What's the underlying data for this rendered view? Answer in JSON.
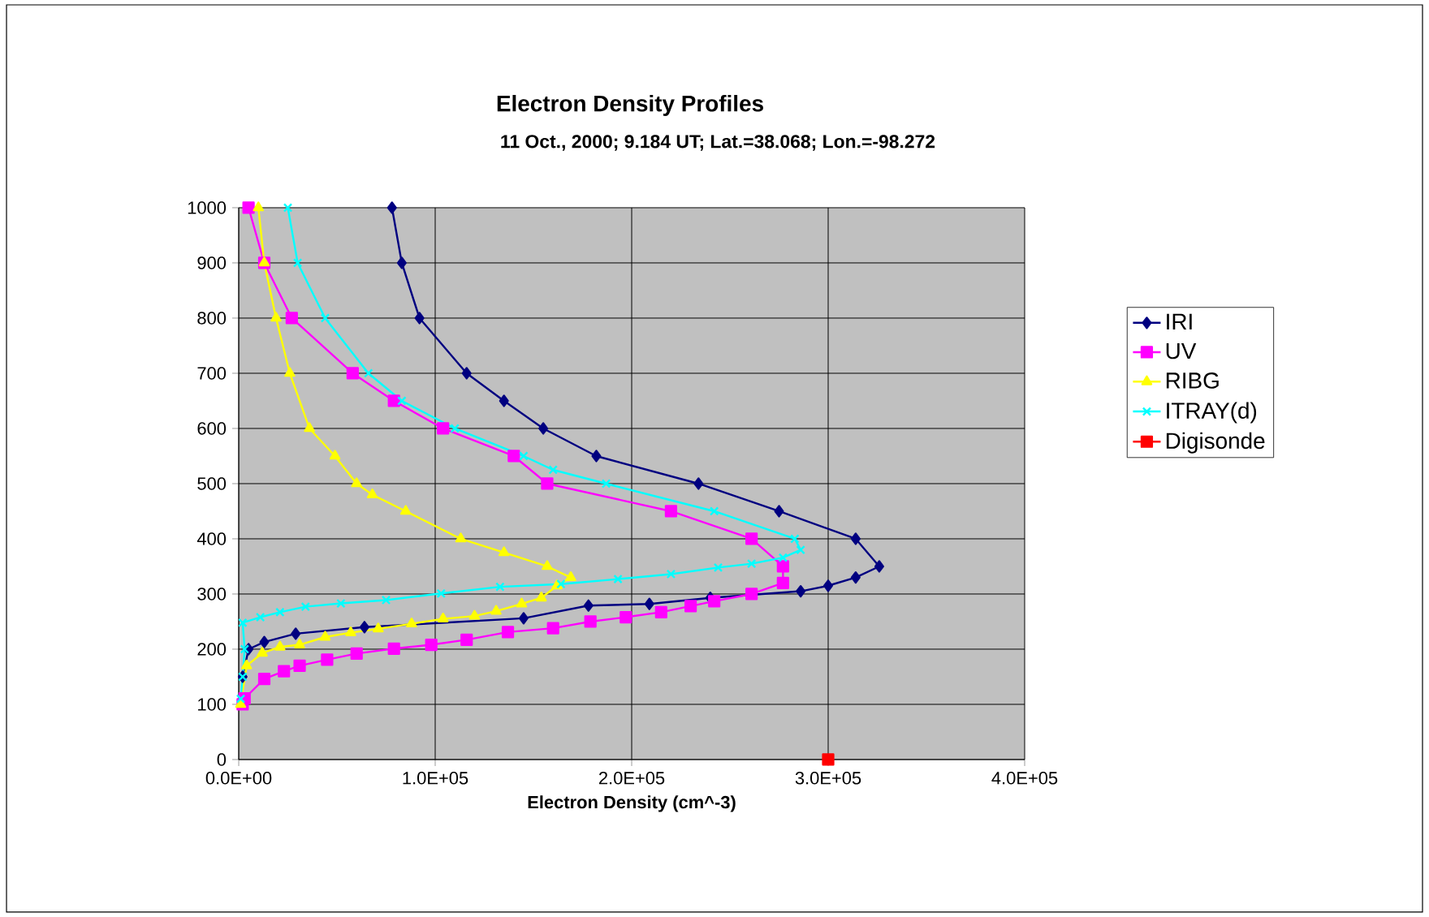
{
  "chart_data": {
    "type": "line",
    "title": "Electron Density Profiles",
    "subtitle": "11 Oct., 2000; 9.184 UT; Lat.=38.068; Lon.=-98.272",
    "xlabel": "Electron Density (cm^-3)",
    "xlim": [
      0,
      400000
    ],
    "ylim": [
      0,
      1000
    ],
    "xticks": [
      {
        "value": 0,
        "label": "0.0E+00"
      },
      {
        "value": 100000,
        "label": "1.0E+05"
      },
      {
        "value": 200000,
        "label": "2.0E+05"
      },
      {
        "value": 300000,
        "label": "3.0E+05"
      },
      {
        "value": 400000,
        "label": "4.0E+05"
      }
    ],
    "yticks": [
      0,
      100,
      200,
      300,
      400,
      500,
      600,
      700,
      800,
      900,
      1000
    ],
    "grid": true,
    "legend": "right",
    "line_style": "solid",
    "series": [
      {
        "name": "IRI",
        "color": "#000080",
        "marker": "diamond",
        "x": [
          78000,
          83000,
          92000,
          116000,
          135000,
          155000,
          182000,
          234000,
          275000,
          314000,
          326000,
          314000,
          300000,
          286000,
          240000,
          209000,
          178000,
          145000,
          64000,
          29000,
          13000,
          5000,
          2000
        ],
        "values": [
          1000,
          900,
          800,
          700,
          650,
          600,
          550,
          500,
          450,
          400,
          350,
          330,
          315,
          305,
          293,
          282,
          279,
          256,
          240,
          228,
          213,
          200,
          150
        ]
      },
      {
        "name": "UV",
        "color": "#ff00ff",
        "marker": "square",
        "x": [
          5000,
          13000,
          27000,
          58000,
          79000,
          104000,
          140000,
          157000,
          220000,
          261000,
          277000,
          277000,
          261000,
          242000,
          230000,
          215000,
          197000,
          179000,
          160000,
          137000,
          116000,
          98000,
          79000,
          60000,
          45000,
          31000,
          23000,
          13000,
          3000,
          2000
        ],
        "values": [
          1000,
          900,
          800,
          700,
          650,
          600,
          550,
          500,
          450,
          400,
          350,
          320,
          300,
          287,
          278,
          267,
          258,
          250,
          238,
          231,
          217,
          208,
          201,
          192,
          181,
          170,
          160,
          146,
          111,
          100
        ]
      },
      {
        "name": "RIBG",
        "color": "#ffff00",
        "marker": "triangle",
        "x": [
          10000,
          13000,
          19000,
          26000,
          36000,
          49000,
          60000,
          68000,
          85000,
          113000,
          135000,
          157000,
          169000,
          162000,
          154000,
          144000,
          131000,
          120000,
          104000,
          88000,
          71000,
          57000,
          44000,
          31000,
          21000,
          12000,
          4000,
          1000
        ],
        "values": [
          1000,
          900,
          800,
          700,
          600,
          550,
          500,
          480,
          450,
          400,
          375,
          350,
          330,
          315,
          293,
          282,
          269,
          260,
          255,
          246,
          237,
          230,
          222,
          208,
          204,
          193,
          170,
          100
        ]
      },
      {
        "name": "ITRAY(d)",
        "color": "#00ffff",
        "marker": "cross",
        "x": [
          25000,
          30000,
          44000,
          66000,
          83000,
          110000,
          145000,
          160000,
          187000,
          242000,
          283000,
          286000,
          277000,
          261000,
          244000,
          220000,
          193000,
          164000,
          133000,
          103000,
          75000,
          52000,
          34000,
          21000,
          11000,
          2000,
          3000,
          2000,
          1000
        ],
        "values": [
          1000,
          900,
          800,
          700,
          650,
          600,
          550,
          525,
          500,
          450,
          400,
          380,
          366,
          355,
          348,
          336,
          327,
          318,
          313,
          301,
          289,
          283,
          277,
          267,
          258,
          248,
          200,
          150,
          110
        ]
      },
      {
        "name": "Digisonde",
        "color": "#ff0000",
        "marker": "square",
        "x": [
          300000
        ],
        "values": [
          0
        ]
      }
    ]
  }
}
